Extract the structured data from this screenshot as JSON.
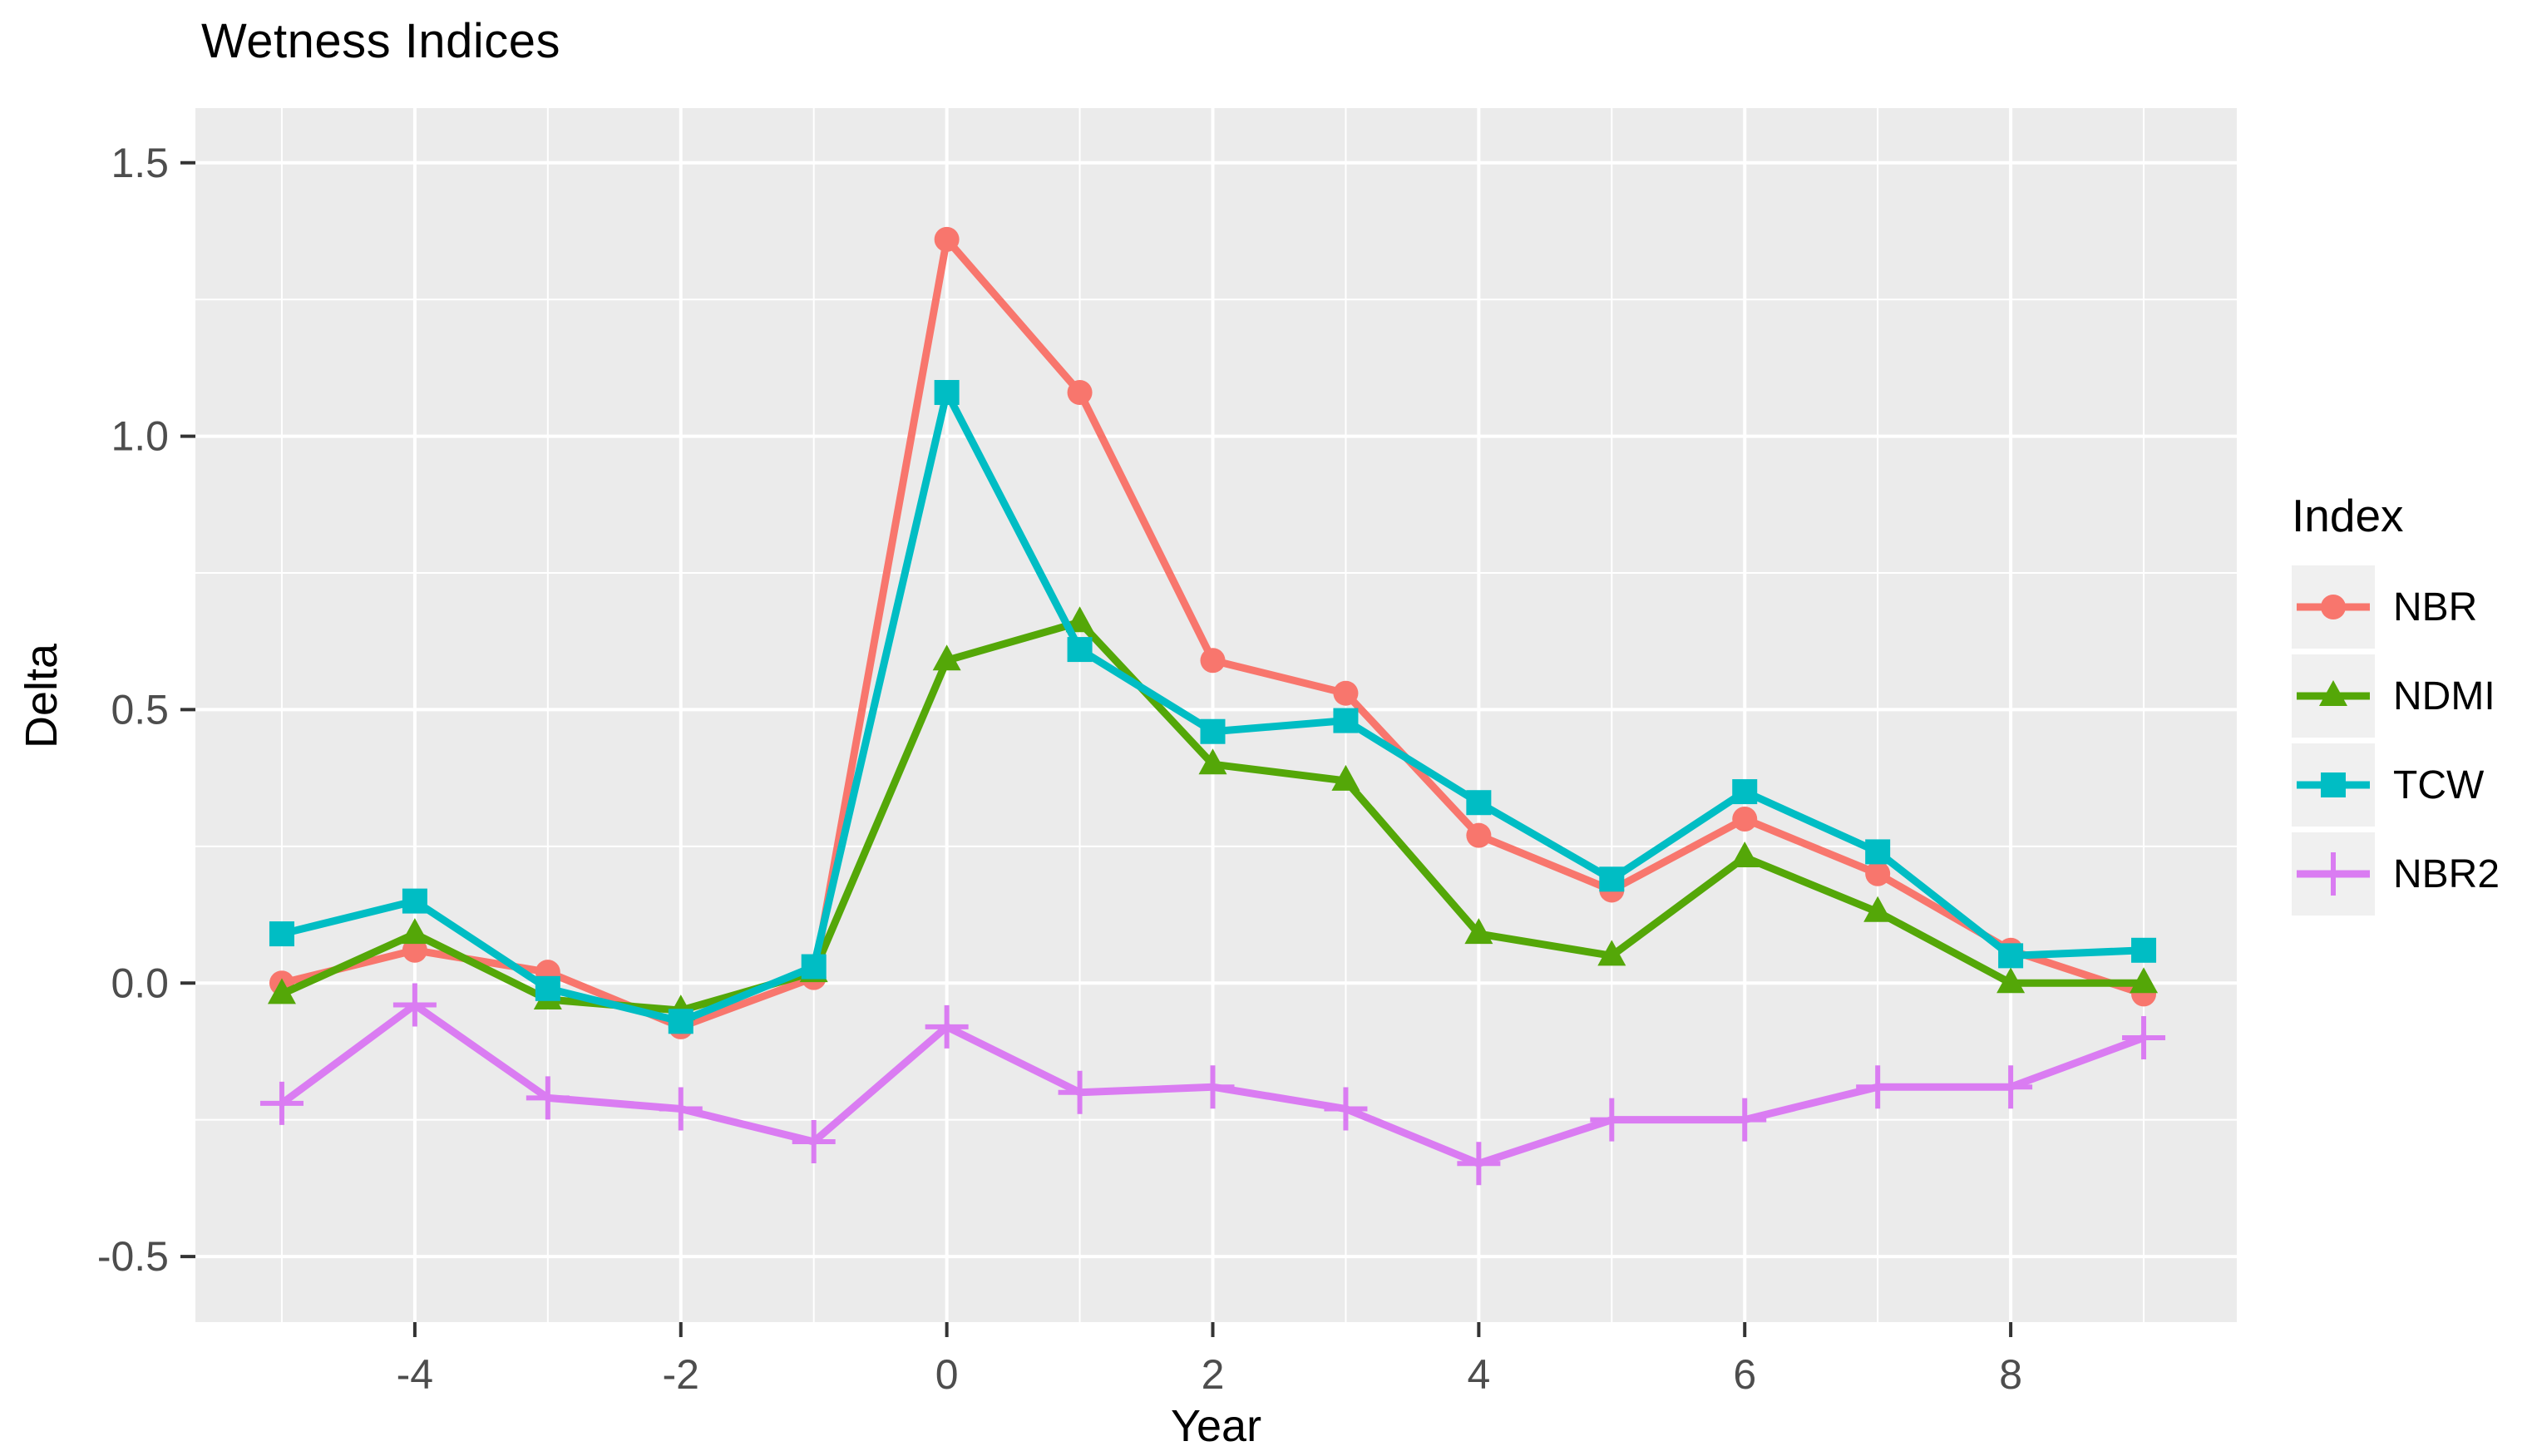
{
  "title": "Wetness Indices",
  "chart_data": {
    "type": "line",
    "title": "Wetness Indices",
    "xlabel": "Year",
    "ylabel": "Delta",
    "legend_title": "Index",
    "legend_position": "right",
    "grid": "major and minor white gridlines on grey panel",
    "x": [
      -5,
      -4,
      -3,
      -2,
      -1,
      0,
      1,
      2,
      3,
      4,
      5,
      6,
      7,
      8,
      9
    ],
    "x_ticks": [
      -4,
      -2,
      0,
      2,
      4,
      6,
      8
    ],
    "x_tick_labels": [
      "-4",
      "-2",
      "0",
      "2",
      "4",
      "6",
      "8"
    ],
    "y_ticks": [
      -0.5,
      0.0,
      0.5,
      1.0,
      1.5
    ],
    "y_tick_labels": [
      "-0.5",
      "0.0",
      "0.5",
      "1.0",
      "1.5"
    ],
    "xlim": [
      -5.65,
      9.7
    ],
    "ylim": [
      -0.62,
      1.6
    ],
    "series": [
      {
        "name": "NBR",
        "color": "#F8766D",
        "marker": "circle",
        "values": [
          0.0,
          0.06,
          0.02,
          -0.08,
          0.01,
          1.36,
          1.08,
          0.59,
          0.53,
          0.27,
          0.17,
          0.3,
          0.2,
          0.06,
          -0.02
        ]
      },
      {
        "name": "NDMI",
        "color": "#54A708",
        "marker": "triangle",
        "values": [
          -0.02,
          0.09,
          -0.03,
          -0.05,
          0.02,
          0.59,
          0.66,
          0.4,
          0.37,
          0.09,
          0.05,
          0.23,
          0.13,
          0.0,
          0.0
        ]
      },
      {
        "name": "TCW",
        "color": "#00BDC4",
        "marker": "square",
        "values": [
          0.09,
          0.15,
          -0.01,
          -0.07,
          0.03,
          1.08,
          0.61,
          0.46,
          0.48,
          0.33,
          0.19,
          0.35,
          0.24,
          0.05,
          0.06
        ]
      },
      {
        "name": "NBR2",
        "color": "#DA7CF2",
        "marker": "plus",
        "values": [
          -0.22,
          -0.04,
          -0.21,
          -0.23,
          -0.29,
          -0.08,
          -0.2,
          -0.19,
          -0.23,
          -0.33,
          -0.25,
          -0.25,
          -0.19,
          -0.19,
          -0.1
        ]
      }
    ]
  },
  "colors": {
    "page_background": "#FFFFFF",
    "panel_background": "#EBEBEB",
    "gridline": "#FFFFFF",
    "tick_mark": "#333333",
    "tick_label": "#4D4D4D",
    "text": "#000000",
    "legend_key_background": "#F0F0F0"
  }
}
